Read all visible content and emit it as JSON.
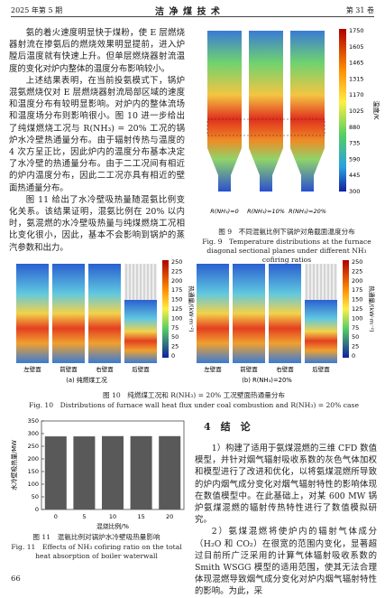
{
  "header": {
    "left": "2025 年第 5 期",
    "center": "洁 净 煤 技 术",
    "right": "第 31 卷"
  },
  "left_paragraphs": [
    "氨的着火速度明显快于煤粉，使 E 层燃烧器射流在掺氨后的燃烧效果明显提前，进入炉膛后温度就有快速上升。但单层燃烧器射流温度的变化对炉内整体的温度分布影响较小。",
    "上述结果表明，在当前投氨模式下，锅炉混氨燃烧仅对 E 层燃烧器射流局部区域的速度和温度分布有较明显影响。对炉内的整体流场和温度场分布则影响很小。图 10 进一步给出了纯煤燃烧工况与 R(NH₃) = 20% 工况的锅炉水冷壁热通量分布。由于辐射传热与温度的 4 次方呈正比，因此炉内的温度分布基本决定了水冷壁的热通量分布。由于二工况间有相近的炉内温度分布，因此二工况亦具有相近的壁面热通量分布。",
    "图 11 给出了水冷壁吸热量随混氨比例变化关系。该结果证明，混氨比例在 20% 以内时，氨混燃的水冷壁吸热量与纯煤燃烧工况相比变化很小，因此，基本不会影响到锅炉的蒸汽参数和出力。"
  ],
  "fig9": {
    "colorbar_ticks": [
      1750,
      1605,
      1465,
      1315,
      1170,
      1025,
      880,
      735,
      590,
      445,
      300
    ],
    "colorbar_label": "温度/K",
    "panel_labels": [
      "R(NH₃)=0",
      "R(NH₃)=10%",
      "R(NH₃)=20%"
    ],
    "caption_cn": "图 9　不同混氨比例下锅炉对角截面温度分布",
    "caption_en": "Fig. 9　Temperature distributions at the furnace diagonal sectional planes under different NH₃ cofiring ratios"
  },
  "fig10": {
    "colorbar_ticks": [
      250,
      225,
      200,
      175,
      150,
      125,
      100,
      75,
      50,
      25,
      0
    ],
    "colorbar_label": "热通量/(kW·m⁻²)",
    "wall_labels": [
      "左壁面",
      "前壁面",
      "右壁面",
      "后壁面"
    ],
    "panel_labels": [
      "(a) 纯燃煤工况",
      "(b) R(NH₃)=20%"
    ],
    "caption_cn": "图 10　纯燃煤工况和 R(NH₃) = 20% 工况壁面热通量分布",
    "caption_en": "Fig. 10　Distributions of furnace wall heat flux under coal combustion and R(NH₃) = 20% case"
  },
  "chart_data": {
    "type": "bar",
    "categories": [
      "0",
      "5",
      "10",
      "15",
      "20"
    ],
    "values": [
      289,
      289,
      290,
      290,
      290
    ],
    "color": "#595959",
    "ylim": [
      0,
      350
    ],
    "yticks": [
      0,
      50,
      100,
      150,
      200,
      250,
      300,
      350
    ],
    "ylabel": "水冷壁吸热量/MW",
    "xlabel": "混烧比例/%",
    "caption_cn": "图 11　混氨比例对锅炉水冷壁吸热量影响",
    "caption_en": "Fig. 11　Effects of NH₃ cofiring ratio on the total heat absorption of boiler waterwall"
  },
  "section": {
    "title": "4　结　论",
    "paragraphs": [
      "1）构建了适用于氨煤混燃的三维 CFD 数值模型，并针对烟气辐射吸收系数的灰色气体加权和模型进行了改进和优化，以将氨煤混燃所导致的炉内烟气成分变化对烟气辐射特性的影响体现在数值模型中。在此基础上，对某 600 MW 锅炉氨煤混燃的辐射传热特性进行了数值模拟研究。",
      "2）氨煤混燃将使炉内的辐射气体成分（H₂O 和 CO₂）在很宽的范围内变化，显著超过目前所广泛采用的计算气体辐射吸收系数的 Smith WSGG 模型的适用范围，使其无法合理体现混燃导致烟气成分变化对炉内烟气辐射特性的影响。为此，采"
    ]
  },
  "page_number": "66"
}
